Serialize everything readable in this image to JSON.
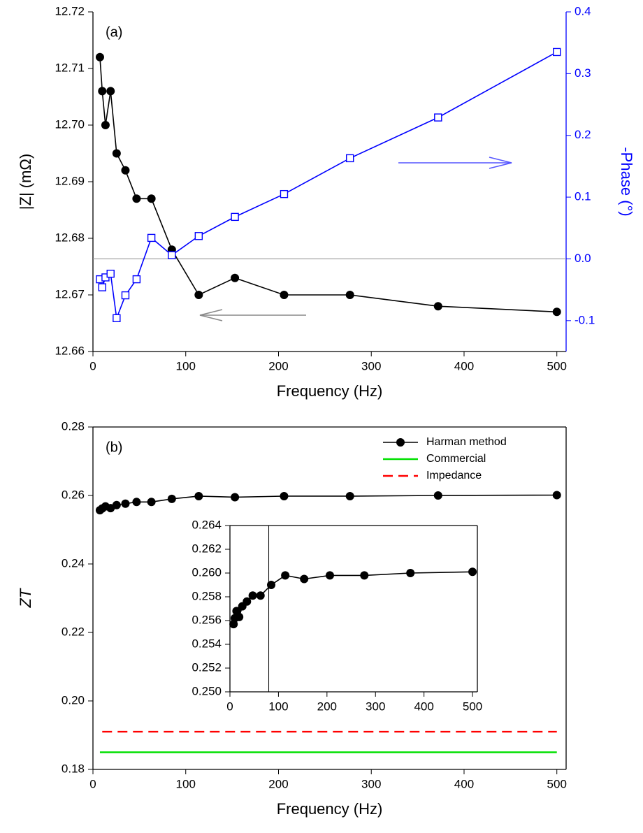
{
  "chart_data": [
    {
      "type": "line",
      "annotation": "(a)",
      "xlabel": "Frequency (Hz)",
      "ylabel": "|Z| (mΩ)",
      "y2label": "-Phase (°)",
      "x": [
        7.5,
        10,
        13.5,
        19,
        25.5,
        35,
        47,
        63,
        85,
        114,
        153,
        206,
        277,
        372,
        500
      ],
      "series": [
        {
          "color": "#000000",
          "marker": "circle",
          "values": [
            12.712,
            12.706,
            12.7,
            12.706,
            12.695,
            12.692,
            12.687,
            12.687,
            12.678,
            12.67,
            12.673,
            12.67,
            12.67,
            12.668,
            12.667
          ]
        },
        {
          "color": "#0000ff",
          "marker": "square",
          "axis": "y2",
          "values": [
            -0.033,
            -0.046,
            -0.03,
            -0.024,
            -0.096,
            -0.059,
            -0.033,
            0.034,
            0.006,
            0.037,
            0.068,
            0.105,
            0.163,
            0.229,
            0.335
          ]
        }
      ],
      "xlim": [
        0,
        510
      ],
      "xticks": [
        0,
        100,
        200,
        300,
        400,
        500
      ],
      "ylim": [
        12.66,
        12.72
      ],
      "yticks": [
        12.66,
        12.67,
        12.68,
        12.69,
        {
          "value": 12.7,
          "label": "12.70"
        },
        12.71,
        12.72
      ],
      "y2lim": [
        -0.15,
        0.4
      ],
      "y2ticks": [
        -0.1,
        {
          "value": 0,
          "label": "0.0"
        },
        0.1,
        0.2,
        0.3,
        0.4
      ],
      "y2_reference_line": 0
    },
    {
      "type": "line",
      "annotation": "(b)",
      "xlabel": "Frequency (Hz)",
      "ylabel": "ZT",
      "legend": "upper right",
      "series": [
        {
          "name": "Harman method",
          "color": "#000000",
          "marker": "circle",
          "x": [
            7.5,
            10,
            13.5,
            19,
            25.5,
            35,
            47,
            63,
            85,
            114,
            153,
            206,
            277,
            372,
            500
          ],
          "values": [
            0.2557,
            0.2562,
            0.2568,
            0.2563,
            0.2572,
            0.2576,
            0.2581,
            0.2581,
            0.259,
            0.2598,
            0.2595,
            0.2598,
            0.2598,
            0.26,
            0.2601
          ]
        },
        {
          "name": "Commercial",
          "color": "#00e000",
          "x": [
            7.5,
            500
          ],
          "values": [
            0.185,
            0.185
          ]
        },
        {
          "name": "Impedance",
          "color": "#ff0000",
          "dash": true,
          "x": [
            10,
            500
          ],
          "values": [
            0.191,
            0.191
          ]
        }
      ],
      "xlim": [
        0,
        510
      ],
      "xticks": [
        0,
        100,
        200,
        300,
        400,
        500
      ],
      "ylim": [
        0.18,
        0.28
      ],
      "yticks": [
        0.18,
        {
          "value": 0.2,
          "label": "0.20"
        },
        0.22,
        0.24,
        0.26,
        0.28
      ]
    },
    {
      "type": "line",
      "series": [
        {
          "color": "#000000",
          "marker": "circle",
          "x": [
            7.5,
            10,
            13.5,
            19,
            25.5,
            35,
            47,
            63,
            85,
            114,
            153,
            206,
            277,
            372,
            500
          ],
          "values": [
            0.2557,
            0.2562,
            0.2568,
            0.2563,
            0.2572,
            0.2576,
            0.2581,
            0.2581,
            0.259,
            0.2598,
            0.2595,
            0.2598,
            0.2598,
            0.26,
            0.2601
          ]
        }
      ],
      "xlim": [
        0,
        510
      ],
      "xticks": [
        0,
        100,
        200,
        300,
        400,
        500
      ],
      "ylim": [
        0.25,
        0.264
      ],
      "yticks": [
        {
          "value": 0.25,
          "label": "0.250"
        },
        0.252,
        0.254,
        0.256,
        0.258,
        {
          "value": 0.26,
          "label": "0.260"
        },
        0.262,
        0.264
      ],
      "reference_line_x": 80
    }
  ]
}
